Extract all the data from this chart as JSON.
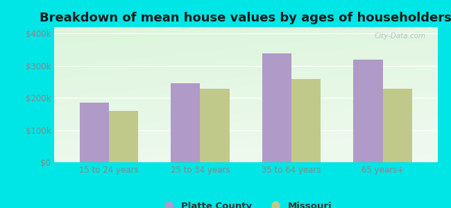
{
  "title": "Breakdown of mean house values by ages of householders",
  "categories": [
    "15 to 24 years",
    "25 to 34 years",
    "35 to 64 years",
    "65 years+"
  ],
  "platte_county": [
    185000,
    245000,
    338000,
    318000
  ],
  "missouri": [
    160000,
    228000,
    258000,
    228000
  ],
  "platte_color": "#b09ac8",
  "missouri_color": "#c0c98a",
  "ylim": [
    0,
    420000
  ],
  "yticks": [
    0,
    100000,
    200000,
    300000,
    400000
  ],
  "ytick_labels": [
    "$0",
    "$100k",
    "$200k",
    "$300k",
    "$400k"
  ],
  "plot_bg_top": "#d4edd8",
  "plot_bg_bottom": "#f0faf0",
  "outer_background": "#00e5e5",
  "legend_labels": [
    "Platte County",
    "Missouri"
  ],
  "bar_width": 0.32,
  "watermark": "City-Data.com",
  "title_fontsize": 13,
  "tick_fontsize": 8.5,
  "legend_fontsize": 9.5
}
